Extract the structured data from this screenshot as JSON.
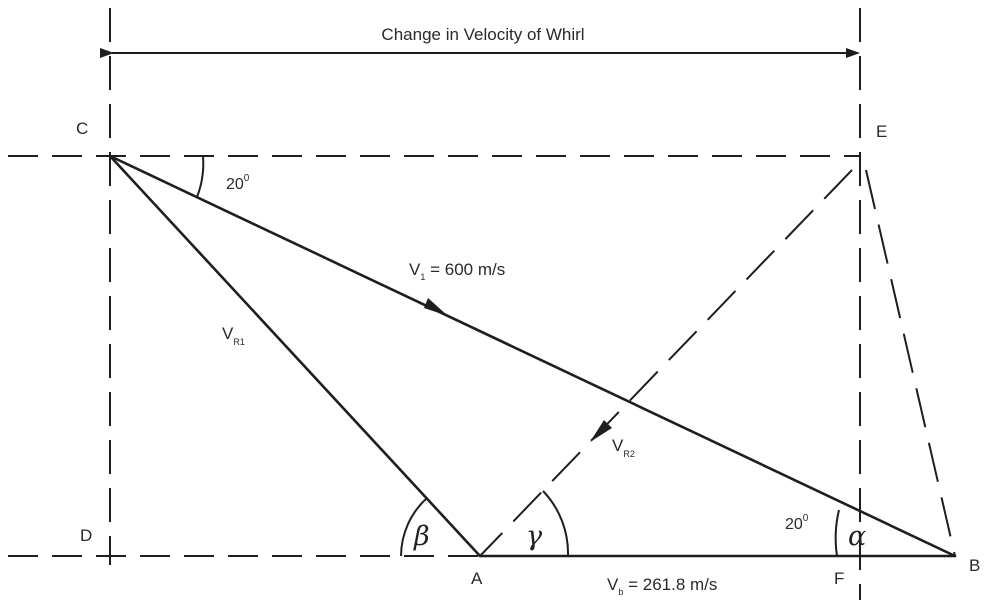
{
  "title": "Change in Velocity of Whirl",
  "points": {
    "C": "C",
    "E": "E",
    "D": "D",
    "A": "A",
    "F": "F",
    "B": "B"
  },
  "angles": {
    "top": "20",
    "top_sup": "0",
    "right": "20",
    "right_sup": "0",
    "beta": "β",
    "gamma": "γ",
    "alpha": "α"
  },
  "vectors": {
    "v1_main": "V",
    "v1_sub": "1",
    "v1_value": " = 600 m/s",
    "vr1_main": "V",
    "vr1_sub": "R1",
    "vr2_main": "V",
    "vr2_sub": "R2",
    "vb_main": "V",
    "vb_sub": "b",
    "vb_value": " = 261.8 m/s"
  }
}
